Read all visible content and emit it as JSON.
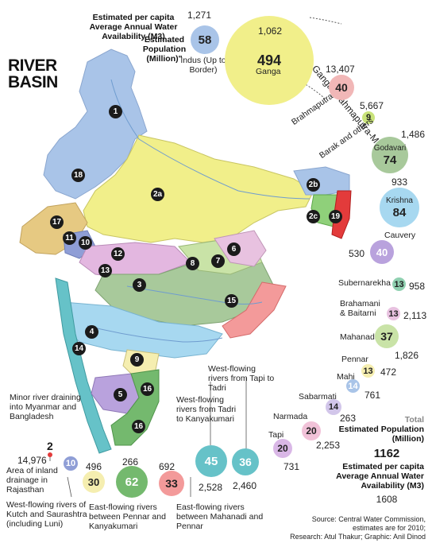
{
  "title_line1": "RIVER",
  "title_line2": "BASIN",
  "legend": {
    "water_label": "Estimated per capita Average Annual Water Availability (M3)",
    "pop_label": "Estimated Population (Million)\""
  },
  "basins": {
    "indus": {
      "name": "Indus (Up to Border)",
      "pop": "58",
      "water": "1,271"
    },
    "ganga": {
      "name": "Ganga",
      "pop": "494",
      "water": "1,062"
    },
    "gbm": {
      "name": "Ganga-Brahmaputra-Meghna"
    },
    "brahmaputra": {
      "name": "Brahmaputra",
      "pop": "40",
      "water": "13,407"
    },
    "barak": {
      "name": "Barak and others",
      "pop": "9",
      "water": "5,667"
    },
    "godavari": {
      "name": "Godavari",
      "pop": "74",
      "water": "1,486"
    },
    "krishna": {
      "name": "Krishna",
      "pop": "84",
      "water": "933"
    },
    "cauvery": {
      "name": "Cauvery",
      "pop": "40",
      "water": "530"
    },
    "subernarekha": {
      "name": "Subernarekha",
      "pop": "13",
      "water": "958"
    },
    "brahmani": {
      "name": "Brahamani & Baitarni",
      "pop": "13",
      "water": "2,113"
    },
    "mahanadi": {
      "name": "Mahanadi",
      "pop": "37",
      "water": "1,826"
    },
    "pennar": {
      "name": "Pennar",
      "pop": "13",
      "water": "472"
    },
    "mahi": {
      "name": "Mahi",
      "pop": "14",
      "water": "761"
    },
    "sabarmati": {
      "name": "Sabarmati",
      "pop": "14",
      "water": "263"
    },
    "narmada": {
      "name": "Narmada",
      "pop": "20",
      "water": "2,253"
    },
    "tapi": {
      "name": "Tapi",
      "pop": "20",
      "water": "731"
    },
    "west_tapi_tadri": {
      "name": "West-flowing rivers from Tapi to Tadri",
      "pop": "36",
      "water": "2,460"
    },
    "west_tadri_kanya": {
      "name": "West-flowing rivers from Tadri to Kanyakumari",
      "pop": "45",
      "water": "2,528"
    },
    "east_mahanadi_pennar": {
      "name": "East-flowing rivers between Mahanadi and Pennar",
      "pop": "33",
      "water": "692"
    },
    "east_pennar_kanya": {
      "name": "East-flowing rivers between Pennar and Kanyakumari",
      "pop": "62",
      "water": "266"
    },
    "west_kutch": {
      "name": "West-flowing rivers of Kutch and Saurashtra (including Luni)",
      "pop": "30",
      "water": "496"
    },
    "inland": {
      "name": "Area of inland drainage in Rajasthan",
      "pop": "10"
    },
    "minor_myanmar": {
      "name": "Minor river draining into Myanmar and Bangladesh",
      "pop": "2",
      "water": "14,976"
    }
  },
  "total": {
    "label": "Total",
    "pop_label": "Estimated Population (Million)",
    "pop": "1162",
    "water_label": "Estimated per capita Average Annual Water Availability (M3)",
    "water": "1608"
  },
  "map_numbers": [
    "1",
    "18",
    "2a",
    "2b",
    "2c",
    "19",
    "17",
    "11",
    "10",
    "12",
    "13",
    "3",
    "7",
    "8",
    "6",
    "15",
    "4",
    "14",
    "9",
    "5",
    "16",
    "16"
  ],
  "source": {
    "line1": "Source: Central Water Commission,",
    "line2": "estimates are for 2010;",
    "line3": "Research: Atul Thakur; Graphic: Anil Dinod"
  }
}
